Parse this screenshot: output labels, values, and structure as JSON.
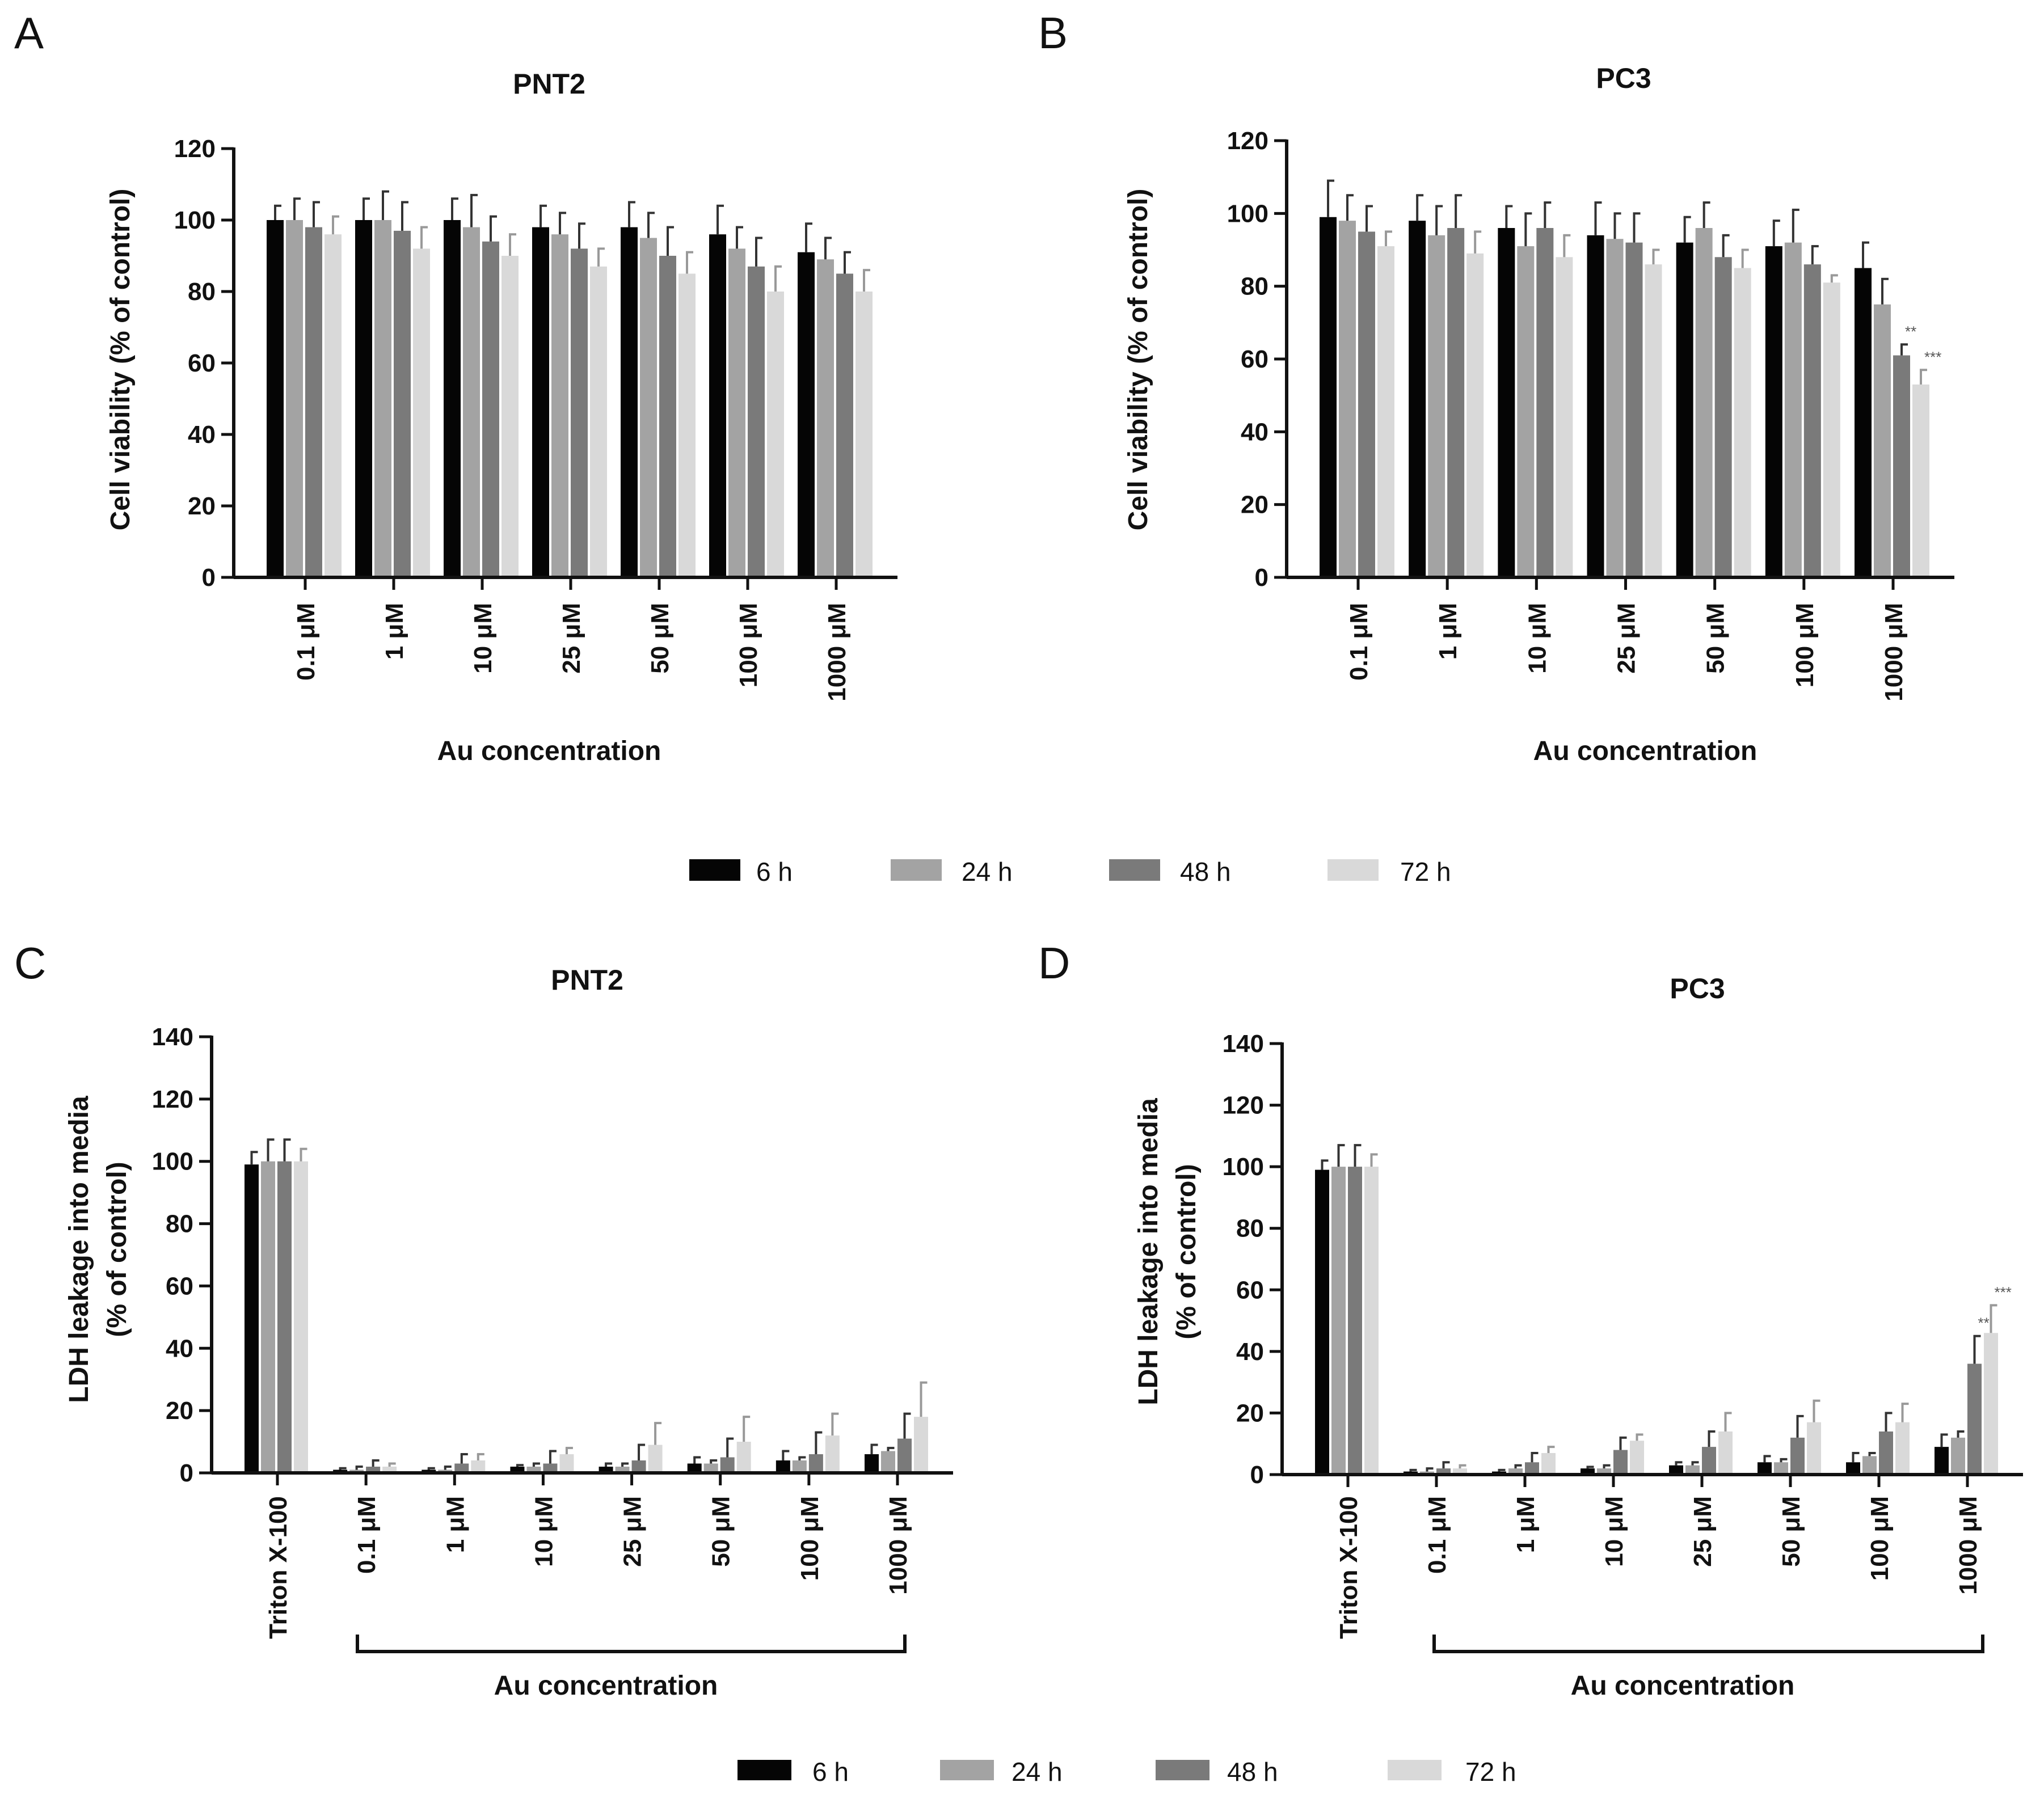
{
  "series_colors": [
    "#050505",
    "#a3a3a3",
    "#7a7a7a",
    "#d9d9d9"
  ],
  "legend_top": [
    "6 h",
    "24 h",
    "48 h",
    "72 h"
  ],
  "legend_bottom": [
    "6 h",
    "24 h",
    "48 h",
    "72 h"
  ],
  "chart_data": [
    {
      "letter": "A",
      "type": "bar",
      "title": "PNT2",
      "ylabel": "Cell viability (% of control)",
      "xlabel": "Au concentration",
      "ylim": [
        0,
        120
      ],
      "yticks": [
        0,
        20,
        40,
        60,
        80,
        100,
        120
      ],
      "categories": [
        "0.1 μM",
        "1 μM",
        "10 μM",
        "25 μM",
        "50 μM",
        "100 μM",
        "1000 μM"
      ],
      "series": [
        {
          "name": "6 h",
          "values": [
            100,
            100,
            100,
            98,
            98,
            96,
            91
          ],
          "errors": [
            4,
            6,
            6,
            6,
            7,
            8,
            8
          ]
        },
        {
          "name": "24 h",
          "values": [
            100,
            100,
            98,
            96,
            95,
            92,
            89
          ],
          "errors": [
            6,
            8,
            9,
            6,
            7,
            6,
            6
          ]
        },
        {
          "name": "48 h",
          "values": [
            98,
            97,
            94,
            92,
            90,
            87,
            85
          ],
          "errors": [
            7,
            8,
            7,
            7,
            8,
            8,
            6
          ]
        },
        {
          "name": "72 h",
          "values": [
            96,
            92,
            90,
            87,
            85,
            80,
            80
          ],
          "errors": [
            5,
            6,
            6,
            5,
            6,
            7,
            6
          ]
        }
      ],
      "annotations": []
    },
    {
      "letter": "B",
      "type": "bar",
      "title": "PC3",
      "ylabel": "Cell viability (% of control)",
      "xlabel": "Au concentration",
      "ylim": [
        0,
        120
      ],
      "yticks": [
        0,
        20,
        40,
        60,
        80,
        100,
        120
      ],
      "categories": [
        "0.1 μM",
        "1 μM",
        "10 μM",
        "25 μM",
        "50 μM",
        "100 μM",
        "1000 μM"
      ],
      "series": [
        {
          "name": "6 h",
          "values": [
            99,
            98,
            96,
            94,
            92,
            91,
            85
          ],
          "errors": [
            10,
            7,
            6,
            9,
            7,
            7,
            7
          ]
        },
        {
          "name": "24 h",
          "values": [
            98,
            94,
            91,
            93,
            96,
            92,
            75
          ],
          "errors": [
            7,
            8,
            9,
            7,
            7,
            9,
            7
          ]
        },
        {
          "name": "48 h",
          "values": [
            95,
            96,
            96,
            92,
            88,
            86,
            61
          ],
          "errors": [
            7,
            9,
            7,
            8,
            6,
            5,
            3
          ]
        },
        {
          "name": "72 h",
          "values": [
            91,
            89,
            88,
            86,
            85,
            81,
            53
          ],
          "errors": [
            4,
            6,
            6,
            4,
            5,
            2,
            4
          ]
        }
      ],
      "annotations": [
        {
          "category": 6,
          "series": 2,
          "label": "**"
        },
        {
          "category": 6,
          "series": 3,
          "label": "***"
        }
      ]
    },
    {
      "letter": "C",
      "type": "bar",
      "title": "PNT2",
      "ylabel": "LDH leakage into media",
      "ylabel2": "(% of control)",
      "xlabel": "Au  concentration",
      "ylim": [
        0,
        140
      ],
      "yticks": [
        0,
        20,
        40,
        60,
        80,
        100,
        120,
        140
      ],
      "categories": [
        "Triton X-100",
        "0.1 μM",
        "1 μM",
        "10 μM",
        "25 μM",
        "50 μM",
        "100 μM",
        "1000 μM"
      ],
      "series": [
        {
          "name": "6 h",
          "values": [
            99,
            1,
            1,
            2,
            2,
            3,
            4,
            6
          ],
          "errors": [
            4,
            0.5,
            0.5,
            0.5,
            1,
            2,
            3,
            3
          ]
        },
        {
          "name": "24 h",
          "values": [
            100,
            1,
            1,
            2,
            2,
            3,
            4,
            7
          ],
          "errors": [
            7,
            1,
            1,
            1,
            1,
            1,
            1,
            1
          ]
        },
        {
          "name": "48 h",
          "values": [
            100,
            2,
            3,
            3,
            4,
            5,
            6,
            11
          ],
          "errors": [
            7,
            2,
            3,
            4,
            5,
            6,
            7,
            8
          ]
        },
        {
          "name": "72 h",
          "values": [
            100,
            2,
            4,
            6,
            9,
            10,
            12,
            18
          ],
          "errors": [
            4,
            1,
            2,
            2,
            7,
            8,
            7,
            11
          ]
        }
      ],
      "annotations": []
    },
    {
      "letter": "D",
      "type": "bar",
      "title": "PC3",
      "ylabel": "LDH leakage into media",
      "ylabel2": "(% of control)",
      "xlabel": "Au  concentration",
      "ylim": [
        0,
        140
      ],
      "yticks": [
        0,
        20,
        40,
        60,
        80,
        100,
        120,
        140
      ],
      "categories": [
        "Triton X-100",
        "0.1 μM",
        "1 μM",
        "10 μM",
        "25 μM",
        "50 μM",
        "100 μM",
        "1000 μM"
      ],
      "series": [
        {
          "name": "6 h",
          "values": [
            99,
            1,
            1,
            2,
            3,
            4,
            4,
            9
          ],
          "errors": [
            3,
            0.5,
            0.5,
            0.5,
            1,
            2,
            3,
            4
          ]
        },
        {
          "name": "24 h",
          "values": [
            100,
            1,
            2,
            2,
            3,
            4,
            6,
            12
          ],
          "errors": [
            7,
            1,
            1,
            1,
            1,
            1,
            1,
            2
          ]
        },
        {
          "name": "48 h",
          "values": [
            100,
            2,
            4,
            8,
            9,
            12,
            14,
            36
          ],
          "errors": [
            7,
            2,
            3,
            4,
            5,
            7,
            6,
            9
          ]
        },
        {
          "name": "72 h",
          "values": [
            100,
            2,
            7,
            11,
            14,
            17,
            17,
            46
          ],
          "errors": [
            4,
            1,
            2,
            2,
            6,
            7,
            6,
            9
          ]
        }
      ],
      "annotations": [
        {
          "category": 7,
          "series": 2,
          "label": "**"
        },
        {
          "category": 7,
          "series": 3,
          "label": "***"
        }
      ]
    }
  ]
}
